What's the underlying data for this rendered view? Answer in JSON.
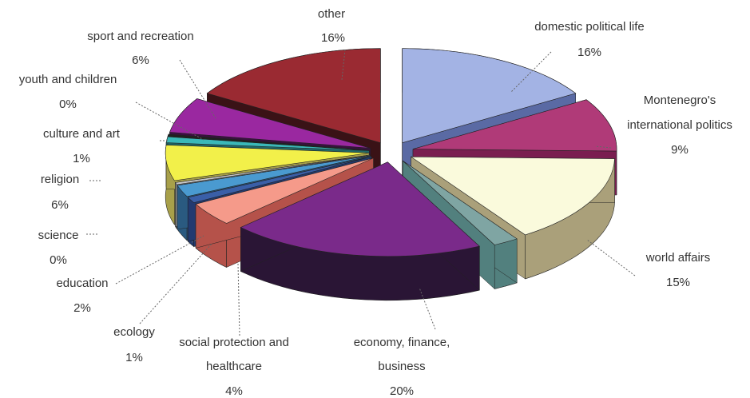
{
  "chart_data": {
    "type": "pie",
    "variant": "3d-exploded",
    "grid": false,
    "legend": "none",
    "slices": [
      {
        "name": "domestic political life",
        "value": 16,
        "label": "16%",
        "color": "#a3b3e4",
        "side": "#5a6aa4"
      },
      {
        "name": "Montenegro's international politics",
        "value": 9,
        "label": "9%",
        "color": "#b03a78",
        "side": "#7a1e50"
      },
      {
        "name": "world affairs",
        "value": 15,
        "label": "15%",
        "color": "#fafadc",
        "side": "#aaa07a"
      },
      {
        "name": "",
        "value": 2,
        "label": "",
        "color": "#7fa5a3",
        "side": "#52807e"
      },
      {
        "name": "economy, finance, business",
        "value": 20,
        "label": "20%",
        "color": "#7a2a8a",
        "side": "#2a1535"
      },
      {
        "name": "social protection and healthcare",
        "value": 4,
        "label": "4%",
        "color": "#f59a8a",
        "side": "#b5524a"
      },
      {
        "name": "ecology",
        "value": 1,
        "label": "1%",
        "color": "#3a5fa8",
        "side": "#223a70"
      },
      {
        "name": "education",
        "value": 2,
        "label": "2%",
        "color": "#4a9ad0",
        "side": "#2a5a80"
      },
      {
        "name": "science",
        "value": 0,
        "label": "0%",
        "color": "#c8c8c8",
        "side": "#888888"
      },
      {
        "name": "religion",
        "value": 6,
        "label": "6%",
        "color": "#f2f04a",
        "side": "#a8a04a"
      },
      {
        "name": "culture and art",
        "value": 1,
        "label": "1%",
        "color": "#3ab8b8",
        "side": "#206868"
      },
      {
        "name": "youth and children",
        "value": 0,
        "label": "0%",
        "color": "#202020",
        "side": "#101010"
      },
      {
        "name": "sport and recreation",
        "value": 6,
        "label": "6%",
        "color": "#9a28a0",
        "side": "#3a1040"
      },
      {
        "name": "other",
        "value": 16,
        "label": "16%",
        "color": "#9a2a32",
        "side": "#3a1216"
      }
    ]
  },
  "labels": {
    "domestic_political_life": {
      "name": "domestic political life",
      "pct": "16%"
    },
    "montenegro_international": {
      "name_line1": "Montenegro's",
      "name_line2": "international politics",
      "pct": "9%"
    },
    "world_affairs": {
      "name": "world affairs",
      "pct": "15%"
    },
    "economy": {
      "name_line1": "economy, finance,",
      "name_line2": "business",
      "pct": "20%"
    },
    "social_protection": {
      "name_line1": "social protection and",
      "name_line2": "healthcare",
      "pct": "4%"
    },
    "ecology": {
      "name": "ecology",
      "pct": "1%"
    },
    "education": {
      "name": "education",
      "pct": "2%"
    },
    "science": {
      "name": "science",
      "pct": "0%"
    },
    "religion": {
      "name": "religion",
      "pct": "6%"
    },
    "culture_and_art": {
      "name": "culture and art",
      "pct": "1%"
    },
    "youth_and_children": {
      "name": "youth and children",
      "pct": "0%"
    },
    "sport_and_recreation": {
      "name": "sport and recreation",
      "pct": "6%"
    },
    "other": {
      "name": "other",
      "pct": "16%"
    }
  }
}
